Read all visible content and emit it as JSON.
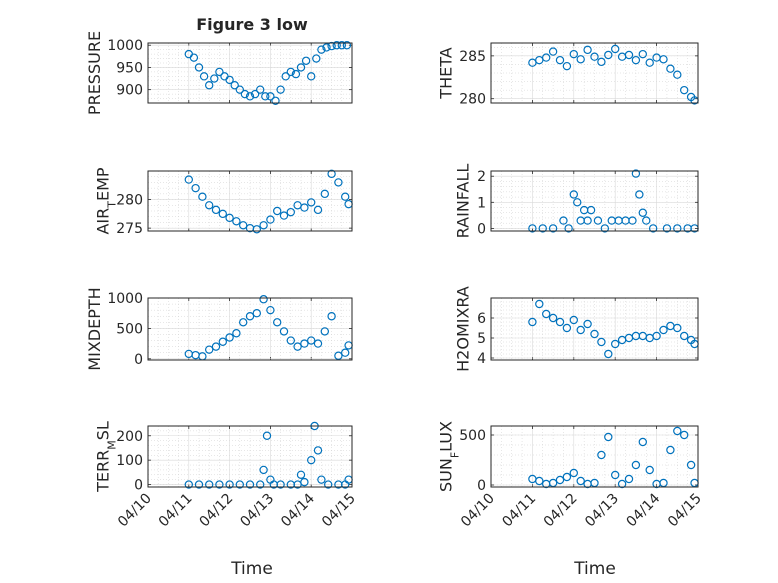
{
  "figure": {
    "title": "Figure 3 low",
    "shared_xlabel": "Time",
    "x_tick_labels": [
      "04/10",
      "04/11",
      "04/12",
      "04/13",
      "04/14",
      "04/15"
    ],
    "marker_color": "#0072BD"
  },
  "chart_data": [
    {
      "type": "scatter",
      "name": "pressure",
      "ylabel": "PRESSURE",
      "ylim": [
        870,
        1005
      ],
      "yticks": [
        900,
        950,
        1000
      ],
      "x": [
        "04/11 00:00",
        "04/11 03:00",
        "04/11 06:00",
        "04/11 09:00",
        "04/11 12:00",
        "04/11 15:00",
        "04/11 18:00",
        "04/11 21:00",
        "04/12 00:00",
        "04/12 03:00",
        "04/12 06:00",
        "04/12 09:00",
        "04/12 12:00",
        "04/12 15:00",
        "04/12 18:00",
        "04/12 21:00",
        "04/13 00:00",
        "04/13 03:00",
        "04/13 06:00",
        "04/13 09:00",
        "04/13 12:00",
        "04/13 15:00",
        "04/13 18:00",
        "04/13 21:00",
        "04/14 00:00",
        "04/14 03:00",
        "04/14 06:00",
        "04/14 09:00",
        "04/14 12:00",
        "04/14 15:00",
        "04/14 18:00",
        "04/14 21:00"
      ],
      "y": [
        980,
        972,
        950,
        930,
        910,
        925,
        940,
        930,
        922,
        910,
        900,
        890,
        885,
        890,
        900,
        885,
        885,
        875,
        900,
        930,
        940,
        935,
        950,
        965,
        930,
        970,
        990,
        995,
        998,
        1000,
        1000,
        1000
      ]
    },
    {
      "type": "scatter",
      "name": "theta",
      "ylabel": "THETA",
      "ylim": [
        279.5,
        286.5
      ],
      "yticks": [
        280,
        285
      ],
      "x": [
        "04/11 00:00",
        "04/11 04:00",
        "04/11 08:00",
        "04/11 12:00",
        "04/11 16:00",
        "04/11 20:00",
        "04/12 00:00",
        "04/12 04:00",
        "04/12 08:00",
        "04/12 12:00",
        "04/12 16:00",
        "04/12 20:00",
        "04/13 00:00",
        "04/13 04:00",
        "04/13 08:00",
        "04/13 12:00",
        "04/13 16:00",
        "04/13 20:00",
        "04/14 00:00",
        "04/14 04:00",
        "04/14 08:00",
        "04/14 12:00",
        "04/14 16:00",
        "04/14 20:00",
        "04/14 22:00"
      ],
      "y": [
        284.2,
        284.5,
        284.8,
        285.5,
        284.5,
        283.8,
        285.2,
        284.6,
        285.7,
        284.9,
        284.3,
        285.1,
        285.8,
        284.9,
        285.1,
        284.5,
        285.2,
        284.2,
        284.8,
        284.6,
        283.5,
        282.8,
        281.0,
        280.2,
        279.8
      ]
    },
    {
      "type": "scatter",
      "name": "air_temp",
      "ylabel": "AIR_TEMP",
      "ylim": [
        274.5,
        285
      ],
      "yticks": [
        275,
        280
      ],
      "x": [
        "04/11 00:00",
        "04/11 04:00",
        "04/11 08:00",
        "04/11 12:00",
        "04/11 16:00",
        "04/11 20:00",
        "04/12 00:00",
        "04/12 04:00",
        "04/12 08:00",
        "04/12 12:00",
        "04/12 16:00",
        "04/12 20:00",
        "04/13 00:00",
        "04/13 04:00",
        "04/13 08:00",
        "04/13 12:00",
        "04/13 16:00",
        "04/13 20:00",
        "04/14 00:00",
        "04/14 04:00",
        "04/14 08:00",
        "04/14 12:00",
        "04/14 16:00",
        "04/14 20:00",
        "04/14 22:00"
      ],
      "y": [
        283.5,
        282.0,
        280.5,
        279.0,
        278.2,
        277.5,
        276.8,
        276.2,
        275.5,
        275.0,
        274.8,
        275.5,
        276.5,
        278.0,
        277.2,
        277.8,
        279.0,
        278.6,
        279.5,
        278.2,
        281.0,
        284.5,
        283.0,
        280.5,
        279.2
      ]
    },
    {
      "type": "scatter",
      "name": "rainfall",
      "ylabel": "RAINFALL",
      "ylim": [
        -0.1,
        2.2
      ],
      "yticks": [
        0,
        1,
        2
      ],
      "x": [
        "04/11 00:00",
        "04/11 06:00",
        "04/11 12:00",
        "04/11 18:00",
        "04/11 21:00",
        "04/12 00:00",
        "04/12 02:00",
        "04/12 04:00",
        "04/12 06:00",
        "04/12 08:00",
        "04/12 10:00",
        "04/12 14:00",
        "04/12 18:00",
        "04/12 22:00",
        "04/13 02:00",
        "04/13 06:00",
        "04/13 10:00",
        "04/13 12:00",
        "04/13 14:00",
        "04/13 16:00",
        "04/13 18:00",
        "04/13 22:00",
        "04/14 06:00",
        "04/14 12:00",
        "04/14 18:00",
        "04/14 22:00"
      ],
      "y": [
        0,
        0,
        0,
        0.3,
        0,
        1.3,
        1.0,
        0.3,
        0.7,
        0.3,
        0.7,
        0.3,
        0,
        0.3,
        0.3,
        0.3,
        0.3,
        2.1,
        1.3,
        0.6,
        0.3,
        0,
        0,
        0,
        0,
        0
      ]
    },
    {
      "type": "scatter",
      "name": "mixdepth",
      "ylabel": "MIXDEPTH",
      "ylim": [
        -20,
        1000
      ],
      "yticks": [
        0,
        500,
        1000
      ],
      "x": [
        "04/11 00:00",
        "04/11 04:00",
        "04/11 08:00",
        "04/11 12:00",
        "04/11 16:00",
        "04/11 20:00",
        "04/12 00:00",
        "04/12 04:00",
        "04/12 08:00",
        "04/12 12:00",
        "04/12 16:00",
        "04/12 20:00",
        "04/13 00:00",
        "04/13 04:00",
        "04/13 08:00",
        "04/13 12:00",
        "04/13 16:00",
        "04/13 20:00",
        "04/14 00:00",
        "04/14 04:00",
        "04/14 08:00",
        "04/14 12:00",
        "04/14 16:00",
        "04/14 20:00",
        "04/14 22:00"
      ],
      "y": [
        80,
        60,
        40,
        150,
        200,
        280,
        350,
        420,
        600,
        700,
        750,
        980,
        800,
        600,
        450,
        300,
        200,
        250,
        300,
        250,
        450,
        700,
        50,
        100,
        220
      ]
    },
    {
      "type": "scatter",
      "name": "h2omixra",
      "ylabel": "H2OMIXRA",
      "ylim": [
        3.9,
        7.0
      ],
      "yticks": [
        4,
        5,
        6
      ],
      "x": [
        "04/11 00:00",
        "04/11 04:00",
        "04/11 08:00",
        "04/11 12:00",
        "04/11 16:00",
        "04/11 20:00",
        "04/12 00:00",
        "04/12 04:00",
        "04/12 08:00",
        "04/12 12:00",
        "04/12 16:00",
        "04/12 20:00",
        "04/13 00:00",
        "04/13 04:00",
        "04/13 08:00",
        "04/13 12:00",
        "04/13 16:00",
        "04/13 20:00",
        "04/14 00:00",
        "04/14 04:00",
        "04/14 08:00",
        "04/14 12:00",
        "04/14 16:00",
        "04/14 20:00",
        "04/14 22:00"
      ],
      "y": [
        5.8,
        6.7,
        6.2,
        6.0,
        5.8,
        5.5,
        5.9,
        5.4,
        5.7,
        5.2,
        4.8,
        4.2,
        4.7,
        4.9,
        5.0,
        5.1,
        5.1,
        5.0,
        5.1,
        5.4,
        5.6,
        5.5,
        5.1,
        4.9,
        4.7
      ]
    },
    {
      "type": "scatter",
      "name": "terr_msl",
      "ylabel": "TERR_MSL",
      "ylim": [
        -10,
        240
      ],
      "yticks": [
        0,
        100,
        200
      ],
      "x": [
        "04/11 00:00",
        "04/11 06:00",
        "04/11 12:00",
        "04/11 18:00",
        "04/12 00:00",
        "04/12 06:00",
        "04/12 12:00",
        "04/12 18:00",
        "04/12 20:00",
        "04/12 22:00",
        "04/13 00:00",
        "04/13 02:00",
        "04/13 06:00",
        "04/13 12:00",
        "04/13 16:00",
        "04/13 18:00",
        "04/13 20:00",
        "04/14 00:00",
        "04/14 02:00",
        "04/14 04:00",
        "04/14 06:00",
        "04/14 10:00",
        "04/14 16:00",
        "04/14 20:00",
        "04/14 22:00"
      ],
      "y": [
        0,
        0,
        0,
        0,
        0,
        0,
        0,
        0,
        60,
        200,
        20,
        0,
        0,
        0,
        0,
        40,
        10,
        100,
        240,
        140,
        20,
        0,
        0,
        0,
        20
      ]
    },
    {
      "type": "scatter",
      "name": "sun_flux",
      "ylabel": "SUN_FLUX",
      "ylim": [
        -20,
        590
      ],
      "yticks": [
        0,
        500
      ],
      "x": [
        "04/11 00:00",
        "04/11 04:00",
        "04/11 08:00",
        "04/11 12:00",
        "04/11 16:00",
        "04/11 20:00",
        "04/12 00:00",
        "04/12 04:00",
        "04/12 08:00",
        "04/12 12:00",
        "04/12 16:00",
        "04/12 20:00",
        "04/13 00:00",
        "04/13 04:00",
        "04/13 08:00",
        "04/13 12:00",
        "04/13 16:00",
        "04/13 20:00",
        "04/14 00:00",
        "04/14 04:00",
        "04/14 08:00",
        "04/14 12:00",
        "04/14 16:00",
        "04/14 20:00",
        "04/14 22:00"
      ],
      "y": [
        60,
        40,
        10,
        20,
        50,
        80,
        120,
        40,
        10,
        20,
        300,
        480,
        100,
        10,
        60,
        200,
        430,
        150,
        10,
        20,
        350,
        540,
        500,
        200,
        20
      ]
    }
  ]
}
